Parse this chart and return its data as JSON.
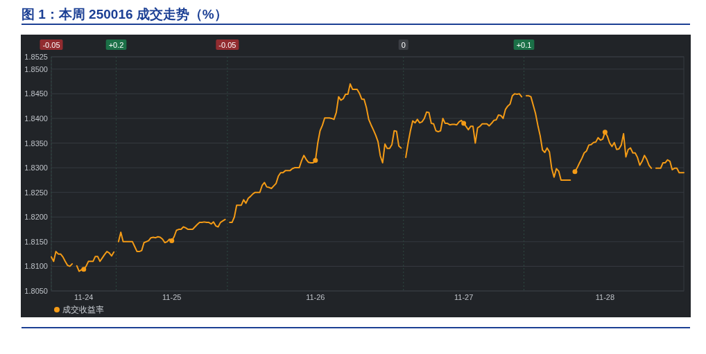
{
  "chart_data": {
    "type": "line",
    "title": "图 1：本周 250016 成交走势（%）",
    "categories": [
      null,
      null,
      null,
      null,
      null,
      null,
      null,
      null,
      null,
      null,
      null,
      null,
      null,
      null,
      "11-24",
      null,
      null,
      null,
      null,
      null,
      null,
      null,
      null,
      null,
      null,
      null,
      null,
      null,
      null,
      null,
      null,
      null,
      null,
      null,
      null,
      null,
      null,
      null,
      null,
      null,
      null,
      null,
      null,
      null,
      null,
      null,
      null,
      null,
      null,
      null,
      null,
      null,
      "11-25",
      null,
      null,
      null,
      null,
      null,
      null,
      null,
      null,
      null,
      null,
      null,
      null,
      null,
      null,
      null,
      null,
      null,
      null,
      null,
      null,
      null,
      null,
      null,
      null,
      null,
      null,
      null,
      null,
      null,
      null,
      null,
      null,
      null,
      null,
      null,
      null,
      null,
      null,
      null,
      null,
      null,
      null,
      null,
      null,
      null,
      null,
      null,
      null,
      null,
      null,
      null,
      null,
      null,
      null,
      null,
      null,
      null,
      null,
      null,
      null,
      null,
      "11-26",
      null,
      null,
      null,
      null,
      null,
      null,
      null,
      null,
      null,
      null,
      null,
      null,
      null,
      null,
      null,
      null,
      null,
      null,
      null,
      null,
      null,
      null,
      null,
      null,
      null,
      null,
      null,
      null,
      null,
      null,
      null,
      null,
      null,
      null,
      null,
      null,
      null,
      null,
      null,
      null,
      null,
      null,
      null,
      null,
      null,
      null,
      null,
      null,
      null,
      null,
      null,
      null,
      null,
      null,
      null,
      null,
      null,
      null,
      null,
      null,
      null,
      null,
      null,
      "11-27",
      null,
      null,
      null,
      null,
      null,
      null,
      null,
      null,
      null,
      null,
      null,
      null,
      null,
      null,
      null,
      null,
      null,
      null,
      null,
      null,
      null,
      null,
      null,
      null,
      null,
      null,
      null,
      null,
      null,
      null,
      null,
      null,
      null,
      null,
      null,
      null,
      null,
      null,
      null,
      null,
      null,
      null,
      null,
      null,
      null,
      null,
      null,
      null,
      null,
      null,
      null,
      null,
      null,
      null,
      null,
      null,
      null,
      null,
      null,
      null,
      "11-28",
      null,
      null,
      null,
      null,
      null,
      null,
      null,
      null,
      null,
      null,
      null,
      null,
      null,
      null,
      null,
      null,
      null,
      null,
      null,
      null,
      null,
      null,
      null,
      null,
      null,
      null,
      null,
      null,
      null,
      null,
      null,
      null,
      null,
      null
    ],
    "ylim": [
      1.805,
      1.8525
    ],
    "yticks": [
      {
        "value": 1.805,
        "label": "1.8050"
      },
      {
        "value": 1.81,
        "label": "1.8100"
      },
      {
        "value": 1.815,
        "label": "1.8150"
      },
      {
        "value": 1.82,
        "label": "1.8200"
      },
      {
        "value": 1.825,
        "label": "1.8250"
      },
      {
        "value": 1.83,
        "label": "1.8300"
      },
      {
        "value": 1.835,
        "label": "1.8350"
      },
      {
        "value": 1.84,
        "label": "1.8400"
      },
      {
        "value": 1.845,
        "label": "1.8450"
      },
      {
        "value": 1.85,
        "label": "1.8500"
      },
      {
        "value": 1.8525,
        "label": "1.8525"
      }
    ],
    "grid": "y",
    "legend": "bottom left",
    "annotations": [
      "-0.05",
      "+0.2",
      "-0.05",
      "0",
      "+0.1"
    ],
    "series": [
      {
        "name": "成交收益率",
        "color": "#f49b16",
        "values": [
          1.8119,
          1.811,
          1.813,
          1.8125,
          1.8125,
          1.8119,
          1.811,
          1.8102,
          1.81,
          1.8105,
          null,
          1.8101,
          1.809,
          1.8093,
          1.8094,
          1.81,
          1.811,
          1.811,
          1.811,
          1.812,
          1.812,
          1.811,
          1.8117,
          1.8124,
          1.813,
          1.8127,
          1.8121,
          1.8129,
          null,
          1.815,
          1.8169,
          1.815,
          1.815,
          1.815,
          1.815,
          1.815,
          1.814,
          1.813,
          1.813,
          1.8132,
          1.8148,
          1.815,
          1.8152,
          1.8158,
          1.8159,
          1.8158,
          1.816,
          1.8159,
          1.8155,
          1.8148,
          1.815,
          1.8155,
          1.8152,
          1.816,
          1.8173,
          1.8175,
          1.8175,
          1.818,
          1.8178,
          1.8175,
          1.8175,
          1.8175,
          1.818,
          1.8185,
          1.8189,
          1.8189,
          1.819,
          1.8189,
          1.8189,
          1.8186,
          1.819,
          1.8182,
          1.818,
          1.8189,
          1.8192,
          1.8195,
          null,
          1.8189,
          1.8189,
          1.82,
          1.8224,
          1.8224,
          1.8224,
          1.8235,
          1.8228,
          1.8238,
          1.8242,
          1.8247,
          1.825,
          1.825,
          1.825,
          1.8264,
          1.827,
          1.8261,
          1.826,
          1.8258,
          1.8263,
          1.8268,
          1.8283,
          1.829,
          1.829,
          1.8294,
          1.8294,
          1.8294,
          1.8298,
          1.83,
          1.83,
          1.83,
          1.8314,
          1.8325,
          1.8317,
          1.8311,
          1.831,
          1.831,
          1.8315,
          1.835,
          1.8375,
          1.8386,
          1.8401,
          1.8401,
          1.8401,
          1.84,
          1.8398,
          1.8412,
          1.8444,
          1.8437,
          1.844,
          1.8449,
          1.8449,
          1.847,
          1.8459,
          1.8459,
          1.8459,
          1.8451,
          1.8439,
          1.8439,
          1.8422,
          1.8398,
          1.8387,
          1.8377,
          1.8366,
          1.8353,
          1.8324,
          1.831,
          1.8348,
          1.8339,
          1.8339,
          1.8347,
          1.8375,
          1.8374,
          1.8344,
          1.834,
          null,
          1.8321,
          1.835,
          1.8375,
          1.8395,
          1.8391,
          1.8398,
          1.8391,
          1.8393,
          1.84,
          1.8413,
          1.8412,
          1.839,
          1.8389,
          1.8375,
          1.8373,
          1.8375,
          1.84,
          1.839,
          1.839,
          1.8387,
          1.8388,
          1.8388,
          1.8387,
          1.8393,
          1.8396,
          1.839,
          1.8384,
          1.8377,
          1.8384,
          1.8384,
          1.835,
          1.8381,
          1.8384,
          1.8389,
          1.8389,
          1.8389,
          1.8385,
          1.839,
          1.8396,
          1.8397,
          1.8407,
          1.8406,
          1.84,
          1.8418,
          1.8425,
          1.8429,
          1.8446,
          1.845,
          1.8449,
          1.845,
          1.8444,
          null,
          1.8446,
          1.8446,
          1.8444,
          1.8427,
          1.841,
          1.8386,
          1.8365,
          1.8336,
          1.8331,
          1.834,
          1.8332,
          1.8298,
          1.8281,
          1.8298,
          1.8293,
          1.8275,
          1.8275,
          1.8275,
          1.8275,
          1.8275,
          null,
          1.8292,
          1.83,
          1.831,
          1.8319,
          1.833,
          1.8334,
          1.8346,
          1.8347,
          1.8351,
          1.8352,
          1.8361,
          1.8356,
          1.8358,
          1.8372,
          1.8364,
          1.835,
          1.8343,
          1.8351,
          1.8337,
          1.8338,
          1.8346,
          1.8369,
          1.8322,
          1.8337,
          1.834,
          1.833,
          1.833,
          1.8321,
          1.8305,
          1.8313,
          1.8325,
          1.8317,
          1.8305,
          1.8299,
          null,
          1.8299,
          1.8299,
          1.8299,
          1.831,
          1.831,
          1.8316,
          1.8313,
          1.8296,
          1.8299,
          1.8299,
          1.829,
          1.829,
          1.829
        ]
      },
      {
        "type": "scatter",
        "color": "#f49b16",
        "values": [
          null,
          null,
          null,
          null,
          null,
          null,
          null,
          null,
          null,
          null,
          null,
          null,
          null,
          null,
          1.8094,
          null,
          null,
          null,
          null,
          null,
          null,
          null,
          null,
          null,
          null,
          null,
          null,
          null,
          null,
          null,
          null,
          null,
          null,
          null,
          null,
          null,
          null,
          null,
          null,
          null,
          null,
          null,
          null,
          null,
          null,
          null,
          null,
          null,
          null,
          null,
          null,
          null,
          1.8152,
          null,
          null,
          null,
          null,
          null,
          null,
          null,
          null,
          null,
          null,
          null,
          null,
          null,
          null,
          null,
          null,
          null,
          null,
          null,
          null,
          null,
          null,
          null,
          null,
          null,
          null,
          null,
          null,
          null,
          null,
          null,
          null,
          null,
          null,
          null,
          null,
          null,
          null,
          null,
          null,
          null,
          null,
          null,
          null,
          null,
          null,
          null,
          null,
          null,
          null,
          null,
          null,
          null,
          null,
          null,
          null,
          null,
          null,
          null,
          null,
          null,
          1.8315,
          null,
          null,
          null,
          null,
          null,
          null,
          null,
          null,
          null,
          null,
          null,
          null,
          null,
          null,
          null,
          null,
          null,
          null,
          null,
          null,
          null,
          null,
          null,
          null,
          null,
          null,
          null,
          null,
          null,
          null,
          null,
          null,
          null,
          null,
          null,
          null,
          null,
          null,
          null,
          null,
          null,
          null,
          null,
          null,
          null,
          null,
          null,
          null,
          null,
          null,
          null,
          null,
          null,
          null,
          null,
          null,
          null,
          null,
          null,
          null,
          null,
          null,
          null,
          1.839,
          null,
          null,
          null,
          null,
          null,
          null,
          null,
          null,
          null,
          null,
          null,
          null,
          null,
          null,
          null,
          null,
          null,
          null,
          null,
          null,
          null,
          null,
          null,
          null,
          null,
          null,
          null,
          null,
          null,
          null,
          null,
          null,
          null,
          null,
          null,
          null,
          null,
          null,
          null,
          null,
          null,
          null,
          null,
          null,
          null,
          null,
          null,
          1.8292,
          null,
          null,
          null,
          null,
          null,
          null,
          null,
          null,
          null,
          null,
          null,
          null,
          1.8372,
          null,
          null,
          null,
          null,
          null,
          null,
          null,
          null,
          null,
          null,
          null,
          null,
          null,
          null,
          null,
          null,
          null,
          null,
          null,
          null,
          null,
          null,
          null,
          null,
          null,
          null,
          null,
          null,
          null,
          null,
          null,
          null,
          null,
          null
        ]
      }
    ]
  }
}
